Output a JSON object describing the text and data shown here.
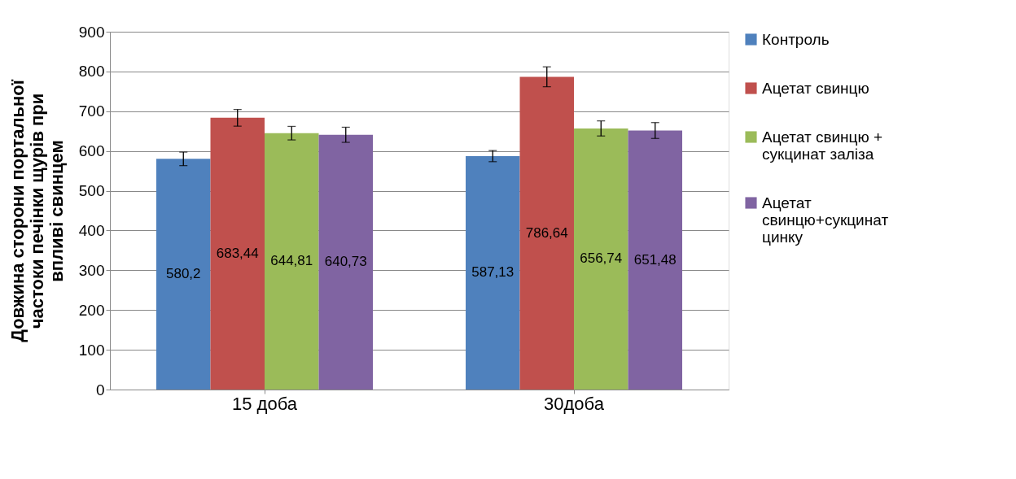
{
  "chart_data": {
    "type": "bar",
    "ylabel": "Довжина сторони портальної частоки печінки щурів при впливі свинцем",
    "categories": [
      "15 доба",
      "30доба"
    ],
    "series": [
      {
        "name": "Контроль",
        "color": "#4f81bd",
        "values": [
          580.2,
          587.13
        ],
        "errors": [
          17,
          14
        ],
        "value_labels": [
          "580,2",
          "587,13"
        ]
      },
      {
        "name": "Ацетат свинцю",
        "color": "#c0504d",
        "values": [
          683.44,
          786.64
        ],
        "errors": [
          21,
          25
        ],
        "value_labels": [
          "683,44",
          "786,64"
        ]
      },
      {
        "name": "Ацетат свинцю + сукцинат заліза",
        "color": "#9bbb59",
        "values": [
          644.81,
          656.74
        ],
        "errors": [
          17,
          19
        ],
        "value_labels": [
          "644,81",
          "656,74"
        ]
      },
      {
        "name": "Ацетат свинцю+сукцинат цинку",
        "color": "#8064a2",
        "values": [
          640.73,
          651.48
        ],
        "errors": [
          19,
          20
        ],
        "value_labels": [
          "640,73",
          "651,48"
        ]
      }
    ],
    "ylim": [
      0,
      900
    ],
    "yticks": [
      0,
      100,
      200,
      300,
      400,
      500,
      600,
      700,
      800,
      900
    ],
    "grid": "y",
    "legend": "right"
  }
}
